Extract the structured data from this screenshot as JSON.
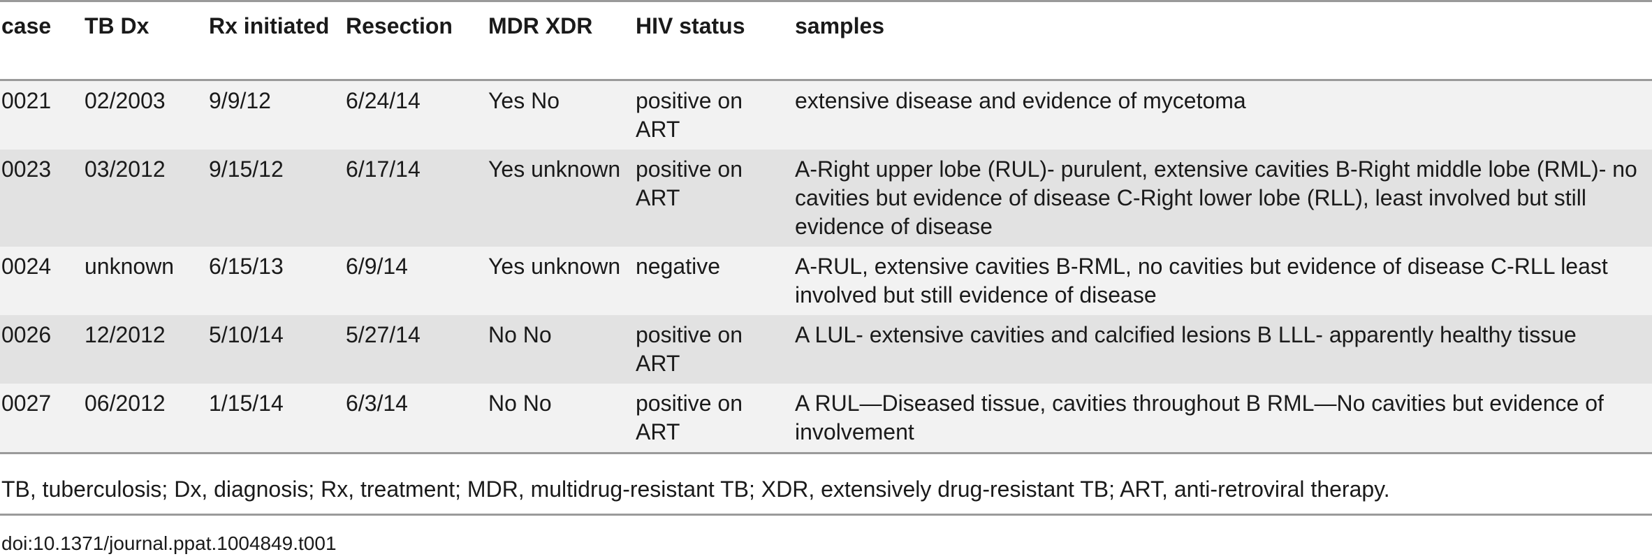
{
  "table": {
    "headers": [
      "case",
      "TB Dx",
      "Rx initiated",
      "Resection",
      "MDR XDR",
      "HIV status",
      "samples"
    ],
    "rows": [
      [
        "0021",
        "02/2003",
        "9/9/12",
        "6/24/14",
        "Yes No",
        "positive on ART",
        "extensive disease and evidence of mycetoma"
      ],
      [
        "0023",
        "03/2012",
        "9/15/12",
        "6/17/14",
        "Yes unknown",
        "positive on ART",
        "A-Right upper lobe (RUL)- purulent, extensive cavities B-Right middle lobe (RML)- no cavities but evidence of disease C-Right lower lobe (RLL), least involved but still evidence of disease"
      ],
      [
        "0024",
        "unknown",
        "6/15/13",
        "6/9/14",
        "Yes unknown",
        "negative",
        "A-RUL, extensive cavities B-RML, no cavities but evidence of disease C-RLL least involved but still evidence of disease"
      ],
      [
        "0026",
        "12/2012",
        "5/10/14",
        "5/27/14",
        "No No",
        "positive on ART",
        "A LUL- extensive cavities and calcified lesions B LLL- apparently healthy tissue"
      ],
      [
        "0027",
        "06/2012",
        "1/15/14",
        "6/3/14",
        "No No",
        "positive on ART",
        "A RUL—Diseased tissue, cavities throughout B RML—No cavities but evidence of involvement"
      ]
    ]
  },
  "footnote": "TB, tuberculosis; Dx, diagnosis; Rx, treatment; MDR, multidrug-resistant TB; XDR, extensively drug-resistant TB; ART, anti-retroviral therapy.",
  "doi": "doi:10.1371/journal.ppat.1004849.t001"
}
